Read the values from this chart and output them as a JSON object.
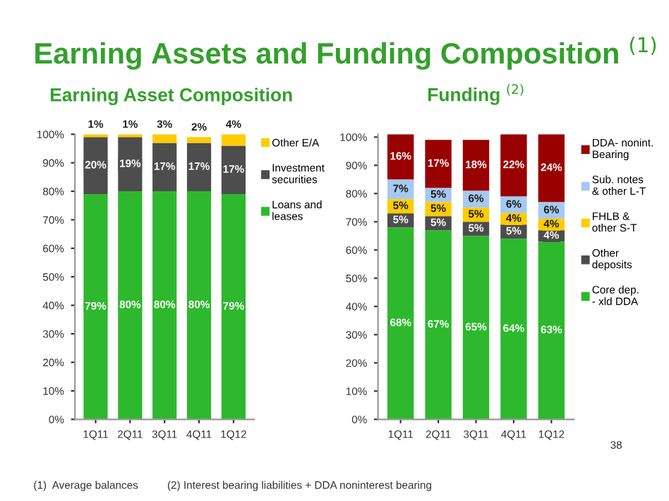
{
  "chart_data": [
    {
      "type": "bar",
      "stacked": true,
      "title": "Earning Assets and Funding Composition $^{(1)}$",
      "subtitle": "Earning Asset Composition",
      "categories": [
        "1Q11",
        "2Q11",
        "3Q11",
        "4Q11",
        "1Q12"
      ],
      "series": [
        {
          "name": "Loans and leases",
          "color": "#2eb82e",
          "values": [
            79,
            80,
            80,
            80,
            79
          ],
          "value_labels": [
            "79%",
            "80%",
            "80%",
            "80%",
            "79%"
          ]
        },
        {
          "name": "Investment securities",
          "color": "#4d4d4d",
          "values": [
            20,
            19,
            17,
            17,
            17
          ],
          "value_labels": [
            "20%",
            "19%",
            "17%",
            "17%",
            "17%"
          ]
        },
        {
          "name": "Other E/A",
          "color": "#ffcc00",
          "values": [
            1,
            1,
            3,
            2,
            4
          ],
          "value_labels": [
            "1%",
            "1%",
            "3%",
            "2%",
            "4%"
          ]
        }
      ],
      "ylim": [
        0,
        100
      ],
      "yticks": [
        {
          "value": 0,
          "label": "0%"
        },
        {
          "value": 10,
          "label": "10%"
        },
        {
          "value": 20,
          "label": "20%"
        },
        {
          "value": 30,
          "label": "30%"
        },
        {
          "value": 40,
          "label": "40%"
        },
        {
          "value": 50,
          "label": "50%"
        },
        {
          "value": 60,
          "label": "60%"
        },
        {
          "value": 70,
          "label": "70%"
        },
        {
          "value": 80,
          "label": "80%"
        },
        {
          "value": 90,
          "label": "90%"
        },
        {
          "value": 100,
          "label": "100%"
        }
      ],
      "legend": "right",
      "grid": false,
      "annotations": [
        "(1)  Average balances",
        "(2) Interest bearing liabilities + DDA noninterest bearing",
        "38"
      ]
    },
    {
      "type": "bar",
      "stacked": true,
      "title": "Funding $^{(2)}$",
      "categories": [
        "1Q11",
        "2Q11",
        "3Q11",
        "4Q11",
        "1Q12"
      ],
      "series": [
        {
          "name": "Core dep. - xld DDA",
          "color": "#2eb82e",
          "values": [
            68,
            67,
            65,
            64,
            63
          ],
          "value_labels": [
            "68%",
            "67%",
            "65%",
            "64%",
            "63%"
          ]
        },
        {
          "name": "Other deposits",
          "color": "#4d4d4d",
          "values": [
            5,
            5,
            5,
            5,
            4
          ],
          "value_labels": [
            "5%",
            "5%",
            "5%",
            "5%",
            "4%"
          ]
        },
        {
          "name": "FHLB & other S-T",
          "color": "#ffcc00",
          "values": [
            5,
            5,
            5,
            4,
            4
          ],
          "value_labels": [
            "5%",
            "5%",
            "5%",
            "4%",
            "4%"
          ]
        },
        {
          "name": "Sub. notes & other L-T",
          "color": "#a6caf0",
          "values": [
            7,
            5,
            6,
            6,
            6
          ],
          "value_labels": [
            "7%",
            "5%",
            "6%",
            "6%",
            "6%"
          ]
        },
        {
          "name": "DDA- nonint. Bearing",
          "color": "#990000",
          "values": [
            16,
            17,
            18,
            22,
            24
          ],
          "value_labels": [
            "16%",
            "17%",
            "18%",
            "22%",
            "24%"
          ]
        }
      ],
      "ylim": [
        0,
        101
      ],
      "yticks": [
        {
          "value": 0,
          "label": "0%"
        },
        {
          "value": 10,
          "label": "10%"
        },
        {
          "value": 20,
          "label": "20%"
        },
        {
          "value": 30,
          "label": "30%"
        },
        {
          "value": 40,
          "label": "40%"
        },
        {
          "value": 50,
          "label": "50%"
        },
        {
          "value": 60,
          "label": "60%"
        },
        {
          "value": 70,
          "label": "70%"
        },
        {
          "value": 80,
          "label": "80%"
        },
        {
          "value": 90,
          "label": "90%"
        },
        {
          "value": 100,
          "label": "100%"
        }
      ],
      "legend": "right",
      "grid": false
    }
  ]
}
